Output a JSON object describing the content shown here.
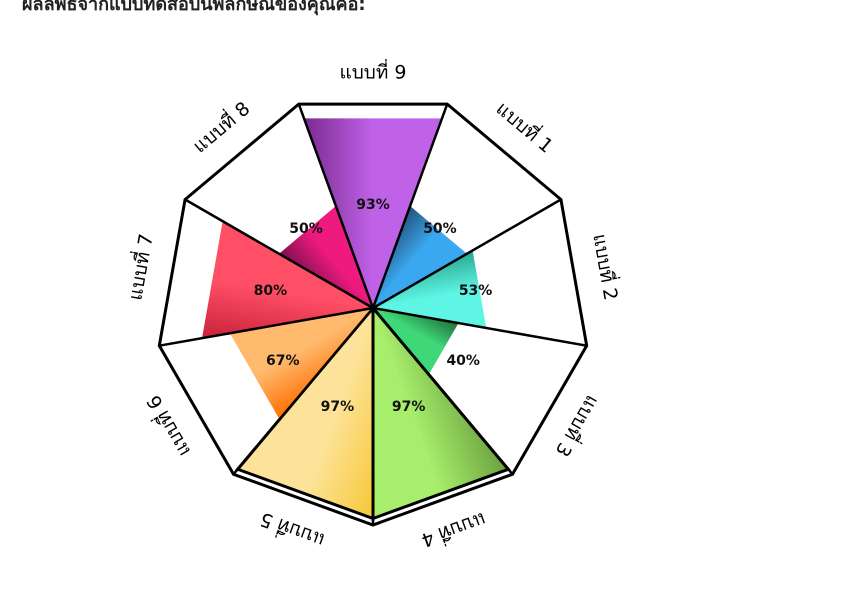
{
  "header": {
    "text": "ผลลัพธ์จากแบบทดสอบนพลักษณ์ของคุณคือ:"
  },
  "chart_data": {
    "type": "radial-bar",
    "max": 100,
    "unit": "%",
    "categories": [
      "แบบที่ 9",
      "แบบที่ 1",
      "แบบที่ 2",
      "แบบที่ 3",
      "แบบที่ 4",
      "แบบที่ 5",
      "แบบที่ 6",
      "แบบที่ 7",
      "แบบที่ 8"
    ],
    "values": [
      93,
      50,
      53,
      40,
      97,
      97,
      67,
      80,
      50
    ],
    "labels": [
      "93%",
      "50%",
      "53%",
      "40%",
      "97%",
      "97%",
      "67%",
      "80%",
      "50%"
    ],
    "colors": [
      [
        "#c062e8",
        "#7a2a90"
      ],
      [
        "#3aa8f0",
        "#24507a"
      ],
      [
        "#5ef5e5",
        "#2aa890"
      ],
      [
        "#3fd878",
        "#1e6e3a"
      ],
      [
        "#a7ee6c",
        "#6aa03e"
      ],
      [
        "#fde39a",
        "#f7c735"
      ],
      [
        "#ffba6e",
        "#ff6e00"
      ],
      [
        "#ff4f66",
        "#c8223a"
      ],
      [
        "#ee1a7e",
        "#7a1050"
      ]
    ]
  }
}
